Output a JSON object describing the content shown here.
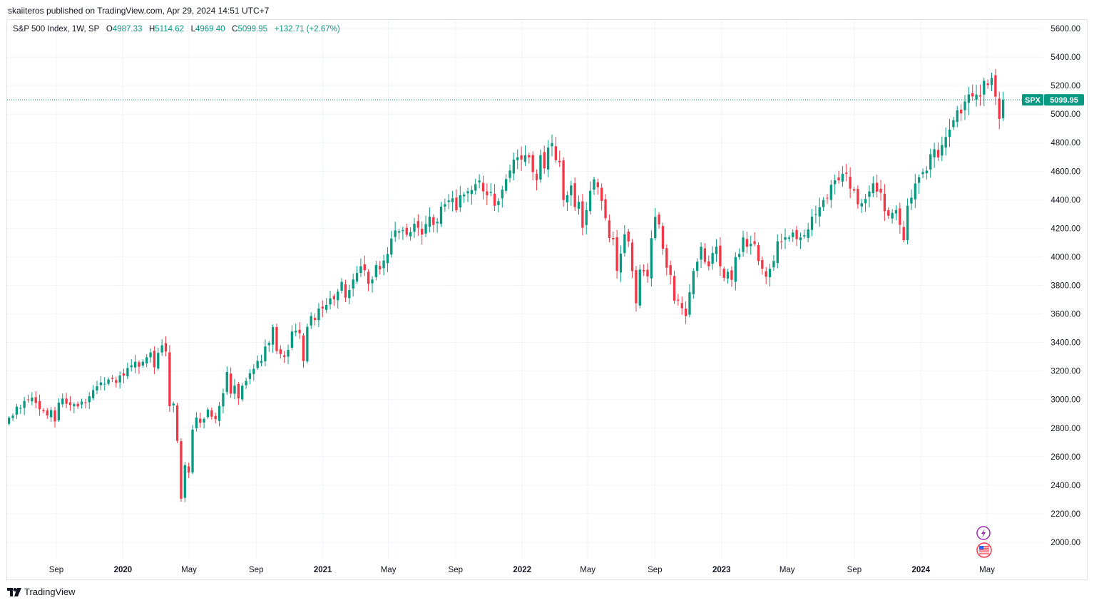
{
  "header": {
    "published_by": "skaiiteros published on TradingView.com, Apr 29, 2024 14:51 UTC+7"
  },
  "legend": {
    "symbol": "S&P 500 Index, 1W, SP",
    "open_label": "O",
    "open": "4987.33",
    "high_label": "H",
    "high": "5114.62",
    "low_label": "L",
    "low": "4969.40",
    "close_label": "C",
    "close": "5099.95",
    "change": "+132.71 (+2.67%)"
  },
  "price_tag": {
    "symbol": "SPX",
    "value": "5099.95"
  },
  "footer": {
    "brand": "TradingView"
  },
  "colors": {
    "up": "#089981",
    "down": "#f23645",
    "grid": "#f0f3fa",
    "tag": "#089981"
  },
  "chart_data": {
    "type": "candlestick",
    "interval": "1W",
    "ylim": [
      1880,
      5660
    ],
    "y_ticks": [
      2000,
      2200,
      2400,
      2600,
      2800,
      3000,
      3200,
      3400,
      3600,
      3800,
      4000,
      4200,
      4400,
      4600,
      4800,
      5000,
      5200,
      5400,
      5600
    ],
    "y_tick_labels": [
      "2000.00",
      "2200.00",
      "2400.00",
      "2600.00",
      "2800.00",
      "3000.00",
      "3200.00",
      "3400.00",
      "3600.00",
      "3800.00",
      "4000.00",
      "4200.00",
      "4400.00",
      "4600.00",
      "4800.00",
      "5000.00",
      "5200.00",
      "5400.00",
      "5600.00"
    ],
    "x_range": [
      "2019-06-03",
      "2024-06-17"
    ],
    "x_ticks": [
      {
        "date": "2019-09-01",
        "label": "Sep"
      },
      {
        "date": "2020-01-01",
        "label": "2020"
      },
      {
        "date": "2020-05-01",
        "label": "May"
      },
      {
        "date": "2020-09-01",
        "label": "Sep"
      },
      {
        "date": "2021-01-01",
        "label": "2021"
      },
      {
        "date": "2021-05-01",
        "label": "May"
      },
      {
        "date": "2021-09-01",
        "label": "Sep"
      },
      {
        "date": "2022-01-01",
        "label": "2022"
      },
      {
        "date": "2022-05-01",
        "label": "May"
      },
      {
        "date": "2022-09-01",
        "label": "Sep"
      },
      {
        "date": "2023-01-01",
        "label": "2023"
      },
      {
        "date": "2023-05-01",
        "label": "May"
      },
      {
        "date": "2023-09-01",
        "label": "Sep"
      },
      {
        "date": "2024-01-01",
        "label": "2024"
      },
      {
        "date": "2024-05-01",
        "label": "May"
      }
    ],
    "first_week": "2019-06-03",
    "last_price": 5099.95,
    "closes": [
      2873,
      2887,
      2950,
      2941,
      2990,
      2996,
      3014,
      2976,
      2932,
      2918,
      2889,
      2926,
      2847,
      2978,
      3007,
      2970,
      2962,
      2968,
      2952,
      2986,
      2976,
      3023,
      3067,
      3093,
      3120,
      3110,
      3141,
      3145,
      3117,
      3169,
      3168,
      3221,
      3240,
      3265,
      3230,
      3265,
      3296,
      3330,
      3226,
      3327,
      3380,
      3337,
      2954,
      2972,
      2711,
      2305,
      2541,
      2489,
      2789,
      2874,
      2837,
      2864,
      2930,
      2880,
      2863,
      2955,
      3044,
      3193,
      3041,
      3098,
      3009,
      3097,
      3130,
      3185,
      3215,
      3271,
      3271,
      3372,
      3397,
      3508,
      3340,
      3319,
      3298,
      3348,
      3477,
      3483,
      3465,
      3270,
      3510,
      3585,
      3557,
      3638,
      3638,
      3663,
      3709,
      3703,
      3756,
      3825,
      3714,
      3768,
      3841,
      3887,
      3934,
      3906,
      3811,
      3841,
      3943,
      3913,
      3974,
      4020,
      4128,
      4185,
      4180,
      4188,
      4155,
      4173,
      4232,
      4204,
      4156,
      4230,
      4281,
      4224,
      4246,
      4352,
      4369,
      4395,
      4411,
      4327,
      4432,
      4437,
      4460,
      4468,
      4510,
      4535,
      4459,
      4432,
      4455,
      4358,
      4391,
      4471,
      4545,
      4605,
      4682,
      4698,
      4682,
      4712,
      4697,
      4594,
      4538,
      4713,
      4620,
      4766,
      4797,
      4677,
      4663,
      4398,
      4432,
      4500,
      4349,
      4385,
      4204,
      4328,
      4463,
      4543,
      4488,
      4392,
      4271,
      4132,
      4123,
      3901,
      4023,
      4158,
      4108,
      3900,
      3675,
      3911,
      3899,
      3863,
      4131,
      4280,
      4228,
      4057,
      3924,
      3873,
      3693,
      3693,
      3640,
      3585,
      3752,
      3901,
      3966,
      4071,
      3965,
      3934,
      4027,
      4071,
      3934,
      3852,
      3895,
      3839,
      3999,
      4020,
      4136,
      4071,
      4091,
      4090,
      3970,
      3917,
      3861,
      3916,
      3971,
      4109,
      4105,
      4138,
      4135,
      4170,
      4124,
      4136,
      4151,
      4192,
      4282,
      4299,
      4348,
      4398,
      4411,
      4505,
      4536,
      4536,
      4582,
      4582,
      4478,
      4464,
      4369,
      4376,
      4405,
      4458,
      4515,
      4457,
      4450,
      4320,
      4288,
      4308,
      4328,
      4224,
      4117,
      4358,
      4415,
      4514,
      4559,
      4594,
      4604,
      4719,
      4754,
      4697,
      4783,
      4840,
      4891,
      4958,
      5027,
      5005,
      5089,
      5138,
      5124,
      5137,
      5123,
      5234,
      5204,
      5254,
      5123,
      4967,
      5099.95
    ]
  }
}
